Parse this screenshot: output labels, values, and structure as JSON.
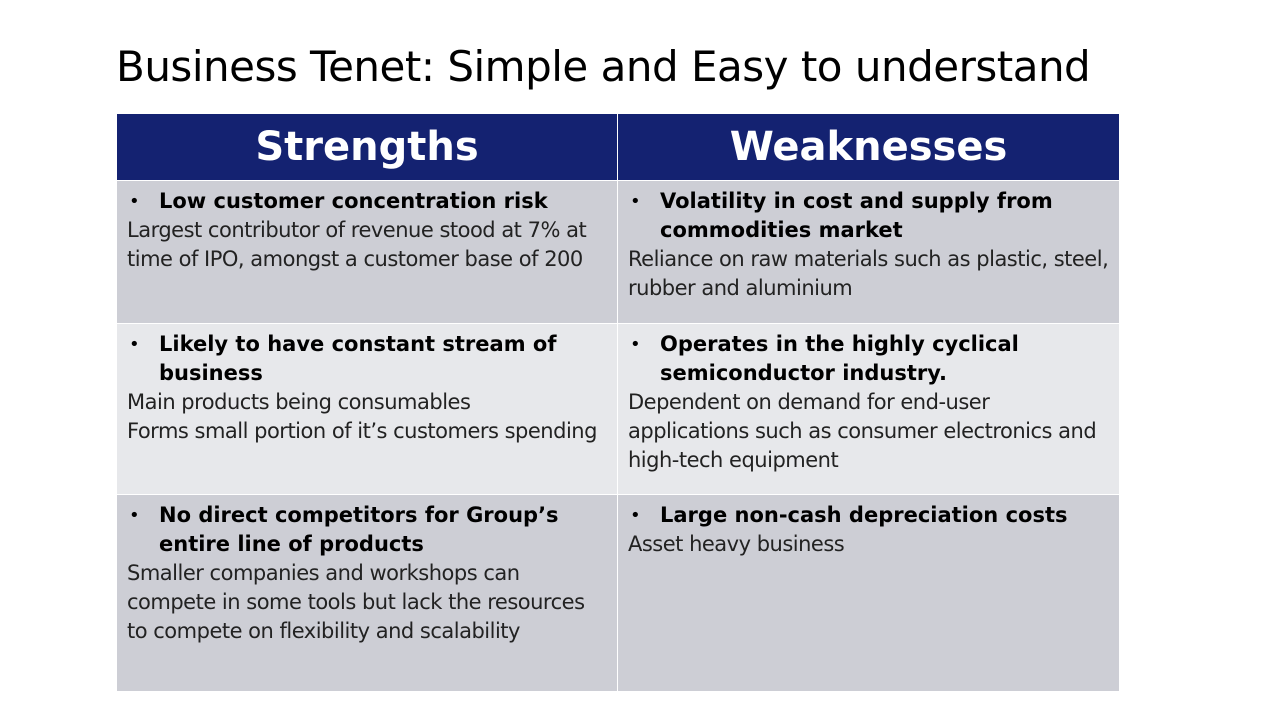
{
  "title": "Business Tenet: Simple and Easy to understand",
  "headers": {
    "strengths": "Strengths",
    "weaknesses": "Weaknesses"
  },
  "rows": [
    {
      "strength": {
        "heading": "Low customer concentration risk",
        "lines": [
          "Largest contributor of revenue stood at 7% at time of IPO, amongst a customer base of 200"
        ]
      },
      "weakness": {
        "heading": "Volatility in cost and supply from commodities market",
        "lines": [
          "Reliance on raw materials such as plastic, steel, rubber and aluminium"
        ]
      }
    },
    {
      "strength": {
        "heading": "Likely to have constant stream of business",
        "lines": [
          "Main products being consumables",
          "Forms small portion of it’s customers spending"
        ]
      },
      "weakness": {
        "heading": "Operates in the highly cyclical semiconductor industry.",
        "lines": [
          "Dependent on demand for end-user applications such as consumer electronics and high-tech equipment"
        ]
      }
    },
    {
      "strength": {
        "heading": "No direct competitors for Group’s entire line of products",
        "lines": [
          "Smaller companies and workshops can compete in some tools but lack the resources to compete on flexibility and scalability"
        ]
      },
      "weakness": {
        "heading": "Large non-cash depreciation costs",
        "lines": [
          "Asset heavy business"
        ]
      }
    }
  ],
  "bullet_glyph": "•",
  "colors": {
    "header_bg": "#142271",
    "row_dark": "#cdced5",
    "row_light": "#e7e8eb"
  }
}
